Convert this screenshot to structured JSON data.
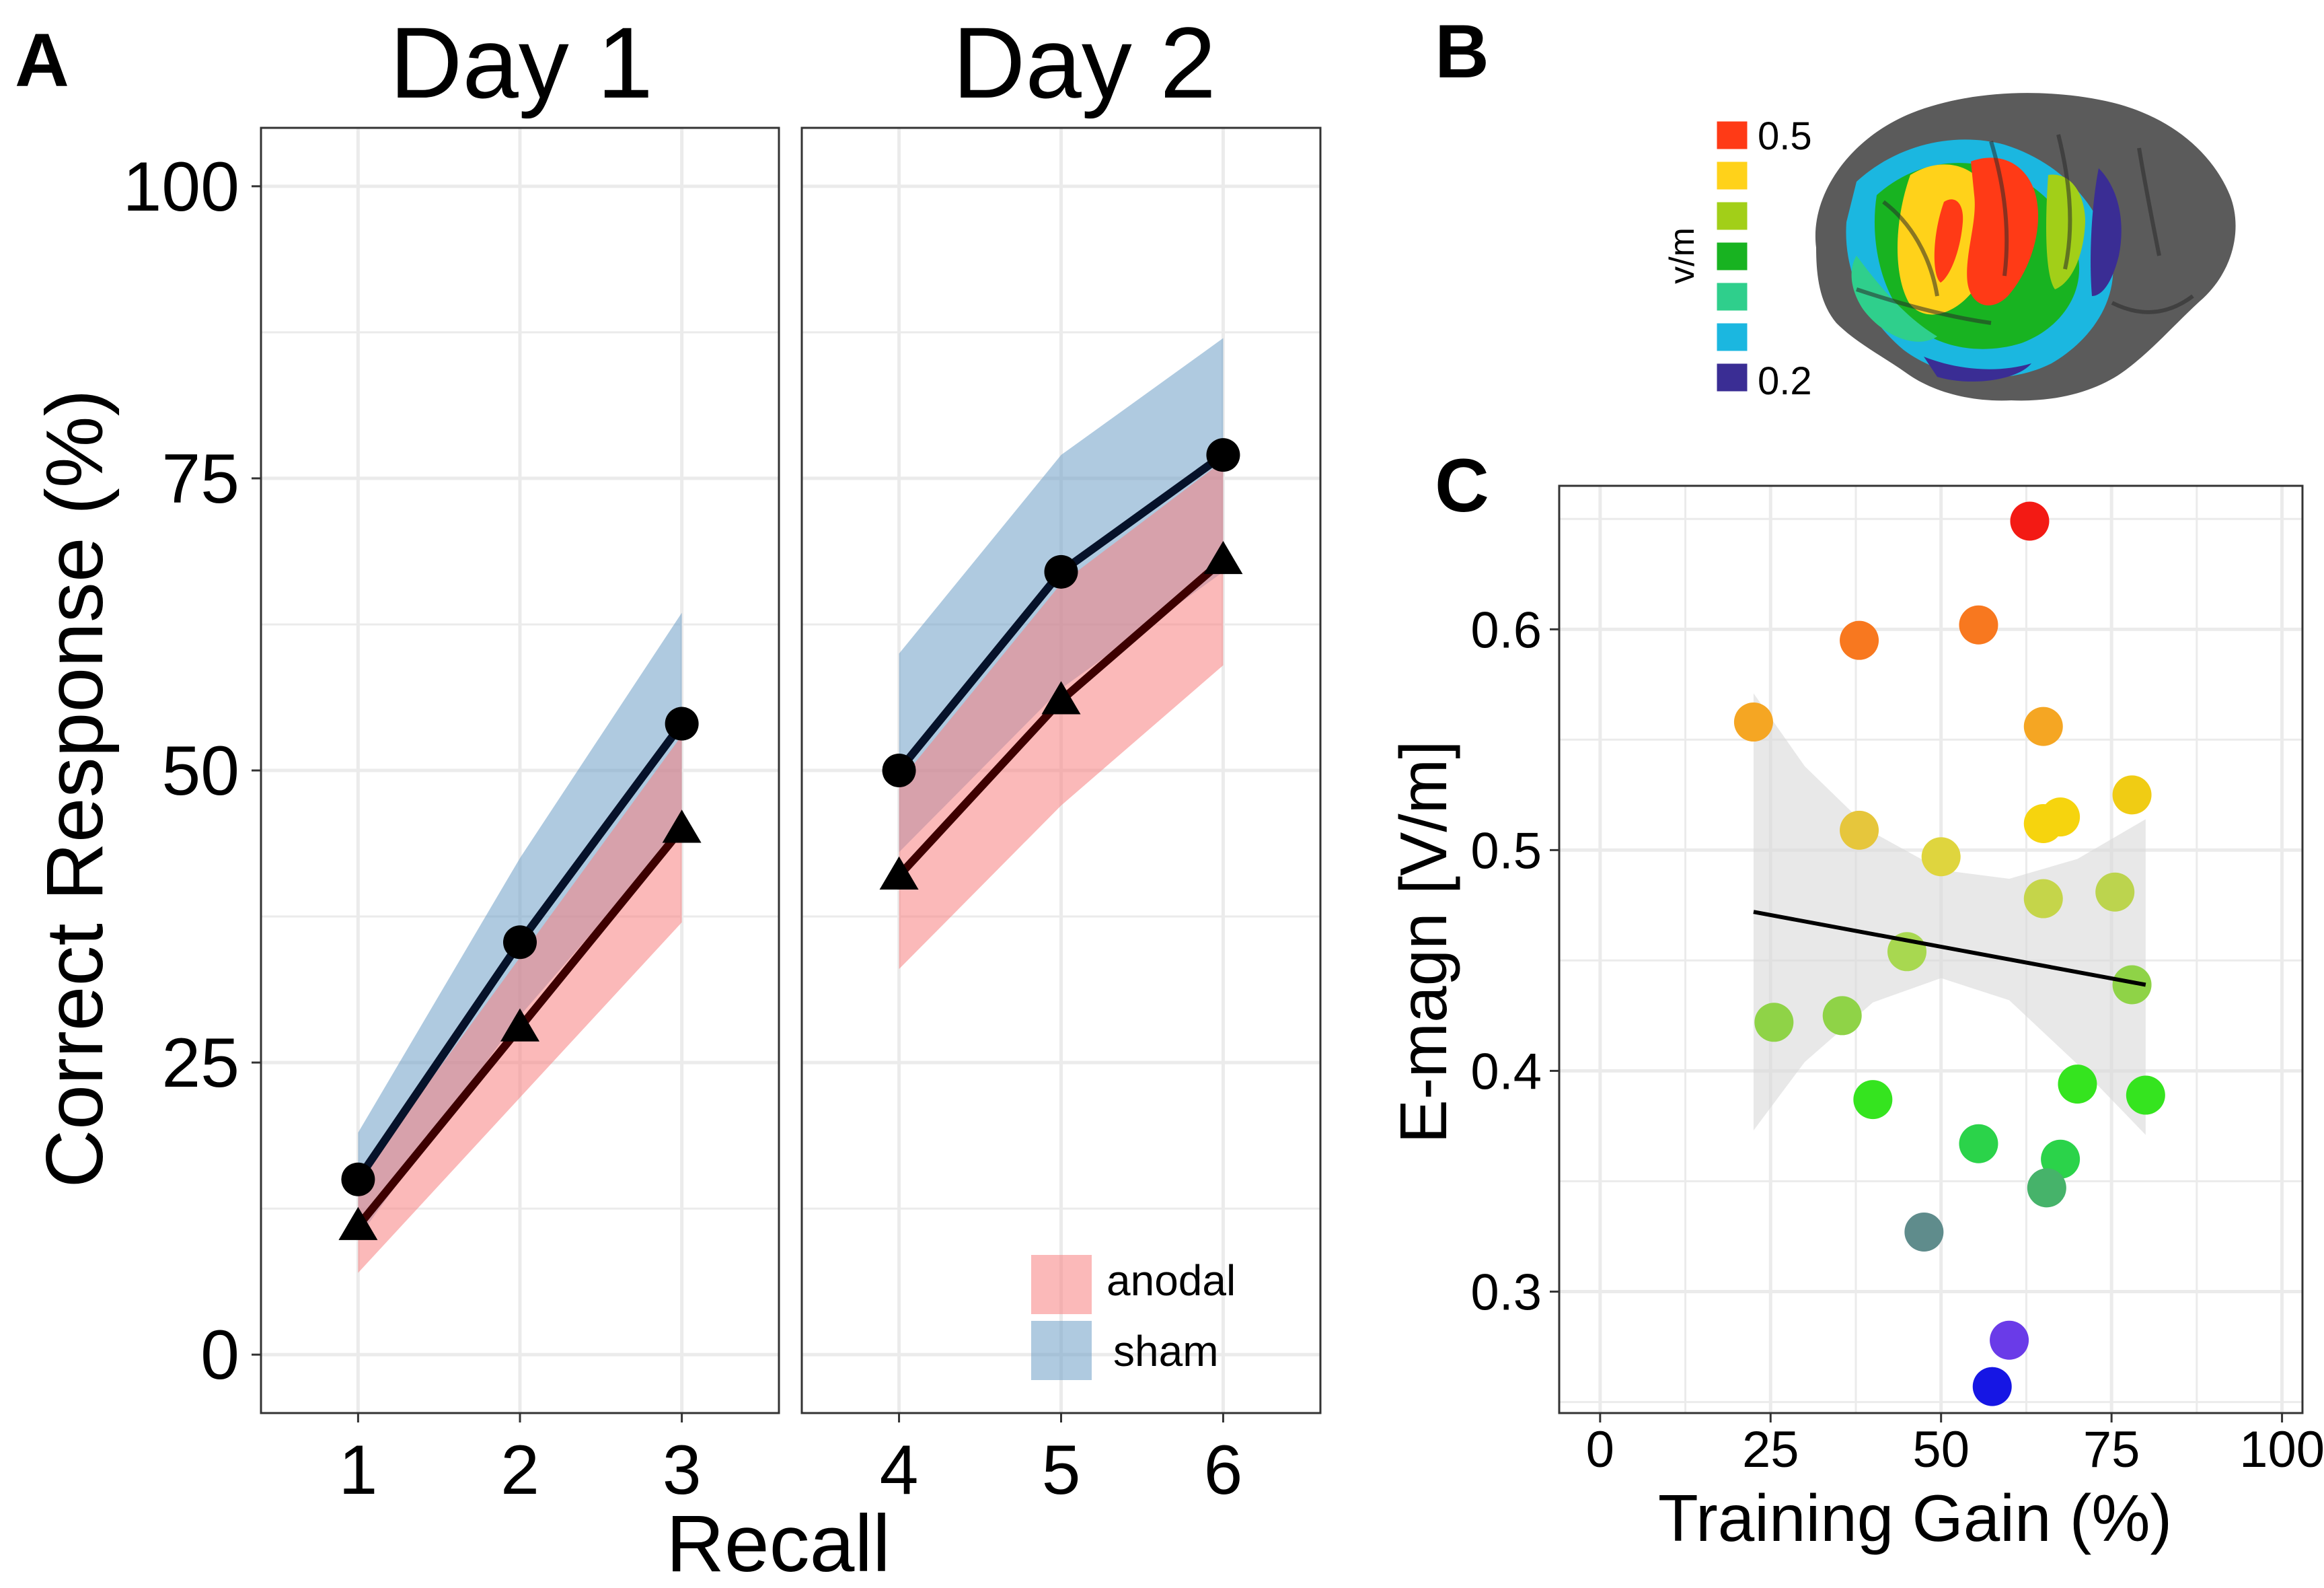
{
  "panel_labels": {
    "a": "A",
    "b": "B",
    "c": "C"
  },
  "colors": {
    "anodal_ribbon": "#f77f7f",
    "sham_ribbon": "#6d9ec6",
    "anodal_line": "#3d0000",
    "sham_line": "#06122a",
    "grid": "#ebebeb",
    "panel_border": "#333333",
    "ci_band": "#d9d9d9"
  },
  "colorbar": {
    "label": "v/m",
    "max_label": "0.5",
    "min_label": "0.2",
    "swatches": [
      "#ff3a16",
      "#ffd21a",
      "#a2cf18",
      "#18b321",
      "#2fcf8c",
      "#1bb7e0",
      "#3a2d94"
    ]
  },
  "chart_data": [
    {
      "type": "line",
      "title": "",
      "xlabel": "Recall",
      "ylabel": "Correct Response (%)",
      "ylim": [
        -5,
        105
      ],
      "yticks": [
        "0",
        "25",
        "50",
        "75",
        "100"
      ],
      "grid": true,
      "legend": {
        "position": "bottom-right",
        "entries": [
          "anodal",
          "sham"
        ]
      },
      "facets": [
        {
          "strip": "Day 1",
          "x": [
            1,
            2,
            3
          ],
          "xlim": [
            0.4,
            3.6
          ],
          "xtick_labels": [
            "1",
            "2",
            "3"
          ],
          "series": [
            {
              "name": "sham",
              "values": [
                15,
                35.3,
                54
              ],
              "lower": [
                10,
                29,
                45
              ],
              "upper": [
                19,
                42.5,
                63.5
              ],
              "marker": "circle"
            },
            {
              "name": "anodal",
              "values": [
                11,
                28,
                45
              ],
              "lower": [
                7,
                22,
                37
              ],
              "upper": [
                15,
                34,
                53
              ],
              "marker": "triangle"
            }
          ]
        },
        {
          "strip": "Day 2",
          "x": [
            4,
            5,
            6
          ],
          "xlim": [
            3.4,
            6.6
          ],
          "xtick_labels": [
            "4",
            "5",
            "6"
          ],
          "series": [
            {
              "name": "sham",
              "values": [
                50,
                67,
                77
              ],
              "lower": [
                43,
                57,
                67
              ],
              "upper": [
                60,
                77,
                87
              ],
              "marker": "circle"
            },
            {
              "name": "anodal",
              "values": [
                41,
                56,
                68
              ],
              "lower": [
                33,
                47,
                59
              ],
              "upper": [
                49,
                66,
                76.5
              ],
              "marker": "triangle"
            }
          ]
        }
      ]
    },
    {
      "type": "scatter",
      "title": "",
      "xlabel": "Training Gain (%)",
      "ylabel": "E-magn [V/m]",
      "xlim": [
        -6,
        103
      ],
      "ylim": [
        0.245,
        0.665
      ],
      "xticks": [
        "0",
        "25",
        "50",
        "75",
        "100"
      ],
      "yticks": [
        "0.3",
        "0.4",
        "0.5",
        "0.6"
      ],
      "grid": true,
      "points": [
        {
          "x": 63,
          "y": 0.649,
          "color": "#f31a14"
        },
        {
          "x": 38,
          "y": 0.595,
          "color": "#f8781f"
        },
        {
          "x": 55.5,
          "y": 0.602,
          "color": "#f8781f"
        },
        {
          "x": 22.5,
          "y": 0.558,
          "color": "#f5a623"
        },
        {
          "x": 65,
          "y": 0.556,
          "color": "#f5a623"
        },
        {
          "x": 38,
          "y": 0.509,
          "color": "#e6c63c"
        },
        {
          "x": 50,
          "y": 0.497,
          "color": "#dfd53e"
        },
        {
          "x": 65,
          "y": 0.512,
          "color": "#f6d40e"
        },
        {
          "x": 67.5,
          "y": 0.515,
          "color": "#f6d40e"
        },
        {
          "x": 78,
          "y": 0.525,
          "color": "#f0cc14"
        },
        {
          "x": 65,
          "y": 0.478,
          "color": "#c5d54a"
        },
        {
          "x": 75.5,
          "y": 0.481,
          "color": "#bcd44e"
        },
        {
          "x": 45,
          "y": 0.454,
          "color": "#a8d850"
        },
        {
          "x": 25.5,
          "y": 0.422,
          "color": "#8fd347"
        },
        {
          "x": 35.5,
          "y": 0.425,
          "color": "#8fd347"
        },
        {
          "x": 78,
          "y": 0.439,
          "color": "#8fd347"
        },
        {
          "x": 40,
          "y": 0.387,
          "color": "#35e41f"
        },
        {
          "x": 70,
          "y": 0.394,
          "color": "#35e41f"
        },
        {
          "x": 80,
          "y": 0.389,
          "color": "#35e41f"
        },
        {
          "x": 55.5,
          "y": 0.367,
          "color": "#2bd34a"
        },
        {
          "x": 67.5,
          "y": 0.36,
          "color": "#2bd34a"
        },
        {
          "x": 65.5,
          "y": 0.347,
          "color": "#46b36a"
        },
        {
          "x": 47.5,
          "y": 0.327,
          "color": "#5f8c8c"
        },
        {
          "x": 60,
          "y": 0.278,
          "color": "#6a3be8"
        },
        {
          "x": 57.5,
          "y": 0.257,
          "color": "#1616e4"
        }
      ],
      "fit_line": {
        "x": [
          22.5,
          80
        ],
        "y": [
          0.472,
          0.439
        ]
      },
      "ci_band": {
        "x": [
          22.5,
          30,
          40,
          50,
          60,
          70,
          80
        ],
        "lower": [
          0.373,
          0.404,
          0.431,
          0.442,
          0.432,
          0.403,
          0.371
        ],
        "upper": [
          0.571,
          0.538,
          0.508,
          0.491,
          0.487,
          0.496,
          0.514
        ]
      }
    }
  ]
}
